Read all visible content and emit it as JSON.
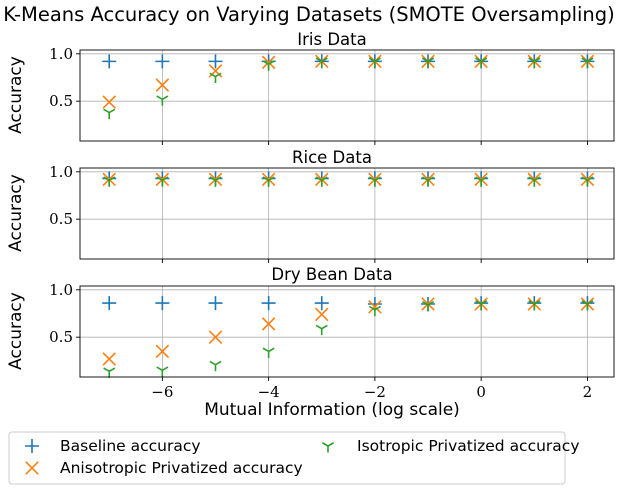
{
  "title": "K-Means Accuracy on Varying Datasets (SMOTE Oversampling)",
  "colors": {
    "baseline": "#1f77b4",
    "anisotropic": "#ff7f0e",
    "isotropic": "#2ca02c",
    "grid": "#b0b0b0"
  },
  "chart_data": [
    {
      "type": "scatter",
      "title": "Iris Data",
      "ylabel": "Accuracy",
      "xlabel": "",
      "x": [
        -7,
        -6,
        -5,
        -4,
        -3,
        -2,
        -1,
        0,
        1,
        2
      ],
      "xlim": [
        -7.55,
        2.5
      ],
      "ylim": [
        0.08,
        1.04
      ],
      "yticks": [
        0.5,
        1.0
      ],
      "ytick_labels": [
        "0.5",
        "1.0"
      ],
      "xticks": [
        -6,
        -4,
        -2,
        0,
        2
      ],
      "grid": true,
      "series": [
        {
          "name": "Baseline accuracy",
          "marker": "plus",
          "values": [
            0.92,
            0.92,
            0.92,
            0.92,
            0.92,
            0.92,
            0.92,
            0.92,
            0.92,
            0.92
          ]
        },
        {
          "name": "Anisotropic Privatized accuracy",
          "marker": "x",
          "values": [
            0.49,
            0.67,
            0.82,
            0.91,
            0.92,
            0.92,
            0.92,
            0.92,
            0.92,
            0.92
          ]
        },
        {
          "name": "Isotropic Privatized accuracy",
          "marker": "tri",
          "values": [
            0.38,
            0.52,
            0.76,
            0.89,
            0.92,
            0.92,
            0.92,
            0.92,
            0.92,
            0.92
          ]
        }
      ]
    },
    {
      "type": "scatter",
      "title": "Rice Data",
      "ylabel": "Accuracy",
      "xlabel": "",
      "x": [
        -7,
        -6,
        -5,
        -4,
        -3,
        -2,
        -1,
        0,
        1,
        2
      ],
      "xlim": [
        -7.55,
        2.5
      ],
      "ylim": [
        0.08,
        1.04
      ],
      "yticks": [
        0.5,
        1.0
      ],
      "ytick_labels": [
        "0.5",
        "1.0"
      ],
      "xticks": [
        -6,
        -4,
        -2,
        0,
        2
      ],
      "grid": true,
      "series": [
        {
          "name": "Baseline accuracy",
          "marker": "plus",
          "values": [
            0.93,
            0.93,
            0.93,
            0.93,
            0.93,
            0.93,
            0.93,
            0.93,
            0.93,
            0.93
          ]
        },
        {
          "name": "Anisotropic Privatized accuracy",
          "marker": "x",
          "values": [
            0.92,
            0.92,
            0.92,
            0.92,
            0.92,
            0.92,
            0.92,
            0.92,
            0.92,
            0.92
          ]
        },
        {
          "name": "Isotropic Privatized accuracy",
          "marker": "tri",
          "values": [
            0.91,
            0.91,
            0.91,
            0.91,
            0.91,
            0.91,
            0.91,
            0.91,
            0.91,
            0.91
          ]
        }
      ]
    },
    {
      "type": "scatter",
      "title": "Dry Bean Data",
      "ylabel": "Accuracy",
      "xlabel": "Mutual Information (log scale)",
      "x": [
        -7,
        -6,
        -5,
        -4,
        -3,
        -2,
        -1,
        0,
        1,
        2
      ],
      "xlim": [
        -7.55,
        2.5
      ],
      "ylim": [
        0.08,
        1.04
      ],
      "yticks": [
        0.5,
        1.0
      ],
      "ytick_labels": [
        "0.5",
        "1.0"
      ],
      "xticks": [
        -6,
        -4,
        -2,
        0,
        2
      ],
      "xtick_labels": [
        "−6",
        "−4",
        "−2",
        "0",
        "2"
      ],
      "grid": true,
      "series": [
        {
          "name": "Baseline accuracy",
          "marker": "plus",
          "values": [
            0.86,
            0.86,
            0.86,
            0.86,
            0.86,
            0.85,
            0.85,
            0.86,
            0.86,
            0.86
          ]
        },
        {
          "name": "Anisotropic Privatized accuracy",
          "marker": "x",
          "values": [
            0.27,
            0.35,
            0.5,
            0.64,
            0.74,
            0.82,
            0.85,
            0.85,
            0.85,
            0.85
          ]
        },
        {
          "name": "Isotropic Privatized accuracy",
          "marker": "tri",
          "values": [
            0.14,
            0.15,
            0.21,
            0.35,
            0.59,
            0.79,
            0.84,
            0.85,
            0.85,
            0.85
          ]
        }
      ]
    }
  ],
  "legend": {
    "placement": "bottom",
    "items": [
      {
        "label": "Baseline accuracy",
        "marker": "plus",
        "color_key": "baseline"
      },
      {
        "label": "Isotropic Privatized accuracy",
        "marker": "tri",
        "color_key": "isotropic"
      },
      {
        "label": "Anisotropic Privatized accuracy",
        "marker": "x",
        "color_key": "anisotropic"
      }
    ]
  }
}
